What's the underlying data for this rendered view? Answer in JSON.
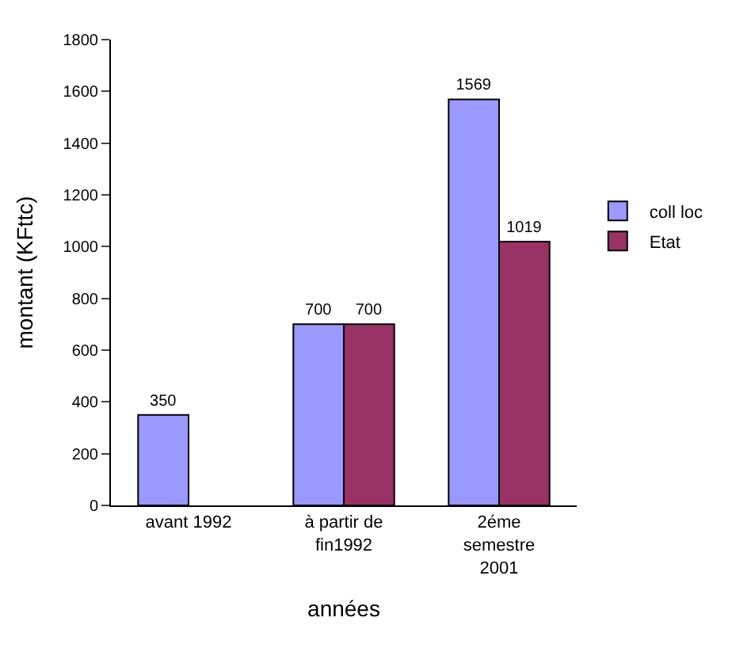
{
  "chart_data": {
    "type": "bar",
    "xlabel": "années",
    "ylabel": "montant (KFttc)",
    "categories": [
      "avant 1992",
      "à partir de\nfin1992",
      "2éme\nsemestre\n2001"
    ],
    "series": [
      {
        "name": "coll loc",
        "color": "#9999ff",
        "values": [
          350,
          700,
          1569
        ]
      },
      {
        "name": "Etat",
        "color": "#993366",
        "values": [
          null,
          700,
          1019
        ]
      }
    ],
    "ylim": [
      0,
      1800
    ],
    "yticks": [
      0,
      200,
      400,
      600,
      800,
      1000,
      1200,
      1400,
      1600,
      1800
    ],
    "data_labels": true,
    "legend": "right"
  }
}
